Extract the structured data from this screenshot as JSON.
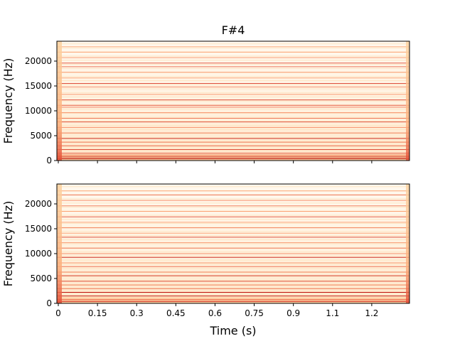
{
  "chart_data": [
    {
      "type": "heatmap",
      "title": "F#4",
      "ylabel": "Frequency (Hz)",
      "xlabel": "",
      "xlim": [
        0,
        1.35
      ],
      "ylim": [
        0,
        24000
      ],
      "yticks": [
        0,
        5000,
        10000,
        15000,
        20000
      ],
      "ytick_labels": [
        "0",
        "5000",
        "10000",
        "15000",
        "20000"
      ],
      "xticks": [
        0,
        0.15,
        0.3,
        0.45,
        0.6,
        0.75,
        0.9,
        1.05,
        1.2
      ],
      "xtick_labels": [],
      "colormap": "OrRd",
      "harmonics": [
        {
          "freq": 370,
          "level": 1.0
        },
        {
          "freq": 740,
          "level": 0.9
        },
        {
          "freq": 1110,
          "level": 0.6
        },
        {
          "freq": 1480,
          "level": 0.7
        },
        {
          "freq": 2220,
          "level": 0.75
        },
        {
          "freq": 2960,
          "level": 0.65
        },
        {
          "freq": 3700,
          "level": 0.6
        },
        {
          "freq": 4440,
          "level": 0.85
        },
        {
          "freq": 5550,
          "level": 0.55
        },
        {
          "freq": 6660,
          "level": 0.5
        },
        {
          "freq": 7770,
          "level": 0.75
        },
        {
          "freq": 8500,
          "level": 0.6
        },
        {
          "freq": 9620,
          "level": 0.5
        },
        {
          "freq": 10730,
          "level": 0.55
        },
        {
          "freq": 11100,
          "level": 0.7
        },
        {
          "freq": 12200,
          "level": 0.75
        },
        {
          "freq": 13300,
          "level": 0.45
        },
        {
          "freq": 14800,
          "level": 0.5
        },
        {
          "freq": 15500,
          "level": 0.75
        },
        {
          "freq": 16600,
          "level": 0.4
        },
        {
          "freq": 17750,
          "level": 0.45
        },
        {
          "freq": 18870,
          "level": 0.6
        },
        {
          "freq": 19600,
          "level": 0.7
        },
        {
          "freq": 20700,
          "level": 0.45
        },
        {
          "freq": 21800,
          "level": 0.4
        },
        {
          "freq": 22900,
          "level": 0.35
        }
      ]
    },
    {
      "type": "heatmap",
      "title": "",
      "ylabel": "Frequency (Hz)",
      "xlabel": "Time (s)",
      "xlim": [
        0,
        1.35
      ],
      "ylim": [
        0,
        24000
      ],
      "yticks": [
        0,
        5000,
        10000,
        15000,
        20000
      ],
      "ytick_labels": [
        "0",
        "5000",
        "10000",
        "15000",
        "20000"
      ],
      "xticks": [
        0,
        0.15,
        0.3,
        0.45,
        0.6,
        0.75,
        0.9,
        1.05,
        1.2
      ],
      "xtick_labels": [
        "0",
        "0.15",
        "0.3",
        "0.45",
        "0.6",
        "0.75",
        "0.9",
        "1.1",
        "1.2"
      ],
      "colormap": "OrRd",
      "harmonics": [
        {
          "freq": 370,
          "level": 0.85
        },
        {
          "freq": 740,
          "level": 0.7
        },
        {
          "freq": 1480,
          "level": 0.9
        },
        {
          "freq": 2220,
          "level": 0.95
        },
        {
          "freq": 2960,
          "level": 0.6
        },
        {
          "freq": 3700,
          "level": 0.55
        },
        {
          "freq": 4440,
          "level": 0.75
        },
        {
          "freq": 5550,
          "level": 0.8
        },
        {
          "freq": 6290,
          "level": 0.55
        },
        {
          "freq": 7400,
          "level": 0.6
        },
        {
          "freq": 8140,
          "level": 0.45
        },
        {
          "freq": 9250,
          "level": 0.85
        },
        {
          "freq": 10000,
          "level": 0.5
        },
        {
          "freq": 11100,
          "level": 0.6
        },
        {
          "freq": 12200,
          "level": 0.45
        },
        {
          "freq": 13300,
          "level": 0.75
        },
        {
          "freq": 14100,
          "level": 0.4
        },
        {
          "freq": 15200,
          "level": 0.55
        },
        {
          "freq": 16300,
          "level": 0.4
        },
        {
          "freq": 17400,
          "level": 0.7
        },
        {
          "freq": 18500,
          "level": 0.4
        },
        {
          "freq": 19600,
          "level": 0.55
        },
        {
          "freq": 20700,
          "level": 0.5
        },
        {
          "freq": 21800,
          "level": 0.6
        },
        {
          "freq": 22600,
          "level": 0.35
        }
      ]
    }
  ]
}
